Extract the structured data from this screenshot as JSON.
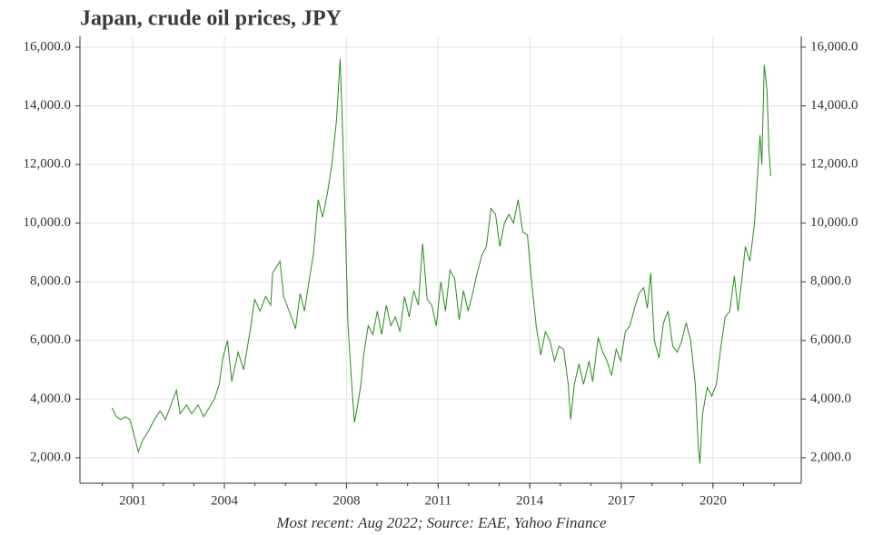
{
  "chart_data": {
    "type": "line",
    "title": "Japan, crude oil prices, JPY",
    "footnote": "Most recent: Aug 2022; Source: EAE, Yahoo Finance",
    "xlim": [
      1999.27,
      2022.89
    ],
    "xticks": [
      2001,
      2004,
      2008,
      2011,
      2014,
      2017,
      2020
    ],
    "xminorticks": [
      2000,
      2001,
      2002,
      2003,
      2004,
      2005,
      2006,
      2007,
      2008,
      2009,
      2010,
      2011,
      2012,
      2013,
      2014,
      2015,
      2016,
      2017,
      2018,
      2019,
      2020,
      2021,
      2022
    ],
    "ylim": [
      1130,
      16370
    ],
    "yticks": [
      {
        "value": 2000,
        "label": "2,000.0"
      },
      {
        "value": 4000,
        "label": "4,000.0"
      },
      {
        "value": 6000,
        "label": "6,000.0"
      },
      {
        "value": 8000,
        "label": "8,000.0"
      },
      {
        "value": 10000,
        "label": "10,000.0"
      },
      {
        "value": 12000,
        "label": "12,000.0"
      },
      {
        "value": 14000,
        "label": "14,000.0"
      },
      {
        "value": 16000,
        "label": "16,000.0"
      }
    ],
    "grid": true,
    "color": "#2a8a1e",
    "x": [
      2000.32,
      2000.46,
      2000.61,
      2000.76,
      2000.91,
      2001.06,
      2001.18,
      2001.33,
      2001.51,
      2001.71,
      2001.89,
      2002.07,
      2002.25,
      2002.43,
      2002.55,
      2002.76,
      2002.93,
      2003.14,
      2003.32,
      2003.5,
      2003.68,
      2003.83,
      2003.95,
      2004.1,
      2004.24,
      2004.45,
      2004.63,
      2004.84,
      2004.99,
      2005.17,
      2005.35,
      2005.52,
      2005.58,
      2005.82,
      2005.94,
      2006.12,
      2006.33,
      2006.48,
      2006.62,
      2006.77,
      2006.92,
      2007.07,
      2007.22,
      2007.37,
      2007.52,
      2007.67,
      2007.79,
      2007.87,
      2007.96,
      2008.05,
      2008.17,
      2008.26,
      2008.35,
      2008.47,
      2008.56,
      2008.71,
      2008.86,
      2009.01,
      2009.15,
      2009.3,
      2009.45,
      2009.6,
      2009.75,
      2009.9,
      2010.05,
      2010.2,
      2010.35,
      2010.49,
      2010.64,
      2010.79,
      2010.94,
      2011.09,
      2011.24,
      2011.39,
      2011.54,
      2011.69,
      2011.83,
      2011.98,
      2012.13,
      2012.28,
      2012.43,
      2012.58,
      2012.73,
      2012.88,
      2013.02,
      2013.17,
      2013.32,
      2013.47,
      2013.62,
      2013.77,
      2013.92,
      2014.06,
      2014.21,
      2014.36,
      2014.51,
      2014.66,
      2014.81,
      2014.96,
      2015.11,
      2015.26,
      2015.34,
      2015.46,
      2015.61,
      2015.76,
      2015.94,
      2016.06,
      2016.24,
      2016.39,
      2016.53,
      2016.68,
      2016.83,
      2016.98,
      2017.13,
      2017.28,
      2017.43,
      2017.58,
      2017.73,
      2017.85,
      2017.96,
      2018.08,
      2018.23,
      2018.38,
      2018.53,
      2018.68,
      2018.83,
      2018.98,
      2019.12,
      2019.27,
      2019.42,
      2019.51,
      2019.57,
      2019.66,
      2019.81,
      2019.96,
      2020.11,
      2020.26,
      2020.4,
      2020.55,
      2020.7,
      2020.82,
      2020.94,
      2021.06,
      2021.21,
      2021.36,
      2021.45,
      2021.54,
      2021.6,
      2021.68,
      2021.77,
      2021.83,
      2021.89
    ],
    "values": [
      3700,
      3400,
      3300,
      3400,
      3300,
      2700,
      2200,
      2600,
      2900,
      3300,
      3600,
      3300,
      3800,
      4300,
      3500,
      3800,
      3500,
      3800,
      3400,
      3700,
      4000,
      4500,
      5400,
      6000,
      4600,
      5600,
      5000,
      6300,
      7400,
      7000,
      7500,
      7200,
      8300,
      8700,
      7500,
      7000,
      6400,
      7600,
      7000,
      8000,
      9000,
      10800,
      10200,
      11000,
      12000,
      13500,
      15600,
      13200,
      10000,
      6500,
      4500,
      3200,
      3700,
      4500,
      5500,
      6500,
      6200,
      7000,
      6200,
      7200,
      6500,
      6800,
      6300,
      7500,
      6800,
      7700,
      7200,
      9300,
      7400,
      7200,
      6500,
      8000,
      7000,
      8400,
      8100,
      6700,
      7700,
      7000,
      7600,
      8300,
      8900,
      9200,
      10500,
      10300,
      9200,
      10000,
      10300,
      10000,
      10800,
      9700,
      9600,
      8000,
      6500,
      5500,
      6300,
      6000,
      5300,
      5800,
      5700,
      4500,
      3300,
      4500,
      5200,
      4500,
      5300,
      4600,
      6100,
      5600,
      5300,
      4800,
      5700,
      5300,
      6300,
      6500,
      7100,
      7600,
      7800,
      7100,
      8300,
      6000,
      5400,
      6600,
      7000,
      5800,
      5600,
      6000,
      6600,
      6000,
      4500,
      2500,
      1800,
      3500,
      4400,
      4100,
      4500,
      5800,
      6800,
      7000,
      8200,
      7000,
      8000,
      9200,
      8700,
      10000,
      11500,
      13000,
      12000,
      15400,
      14500,
      12500,
      11600
    ]
  }
}
